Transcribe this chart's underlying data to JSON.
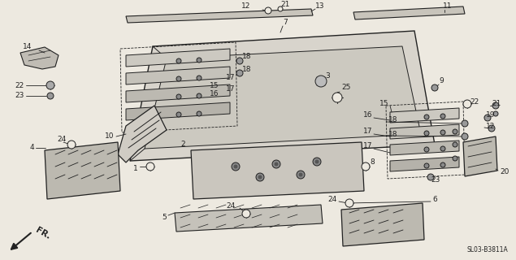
{
  "bg_color": "#ede9e0",
  "lc": "#222222",
  "diagram_code": "SL03-B3811A",
  "fr_label": "FR."
}
